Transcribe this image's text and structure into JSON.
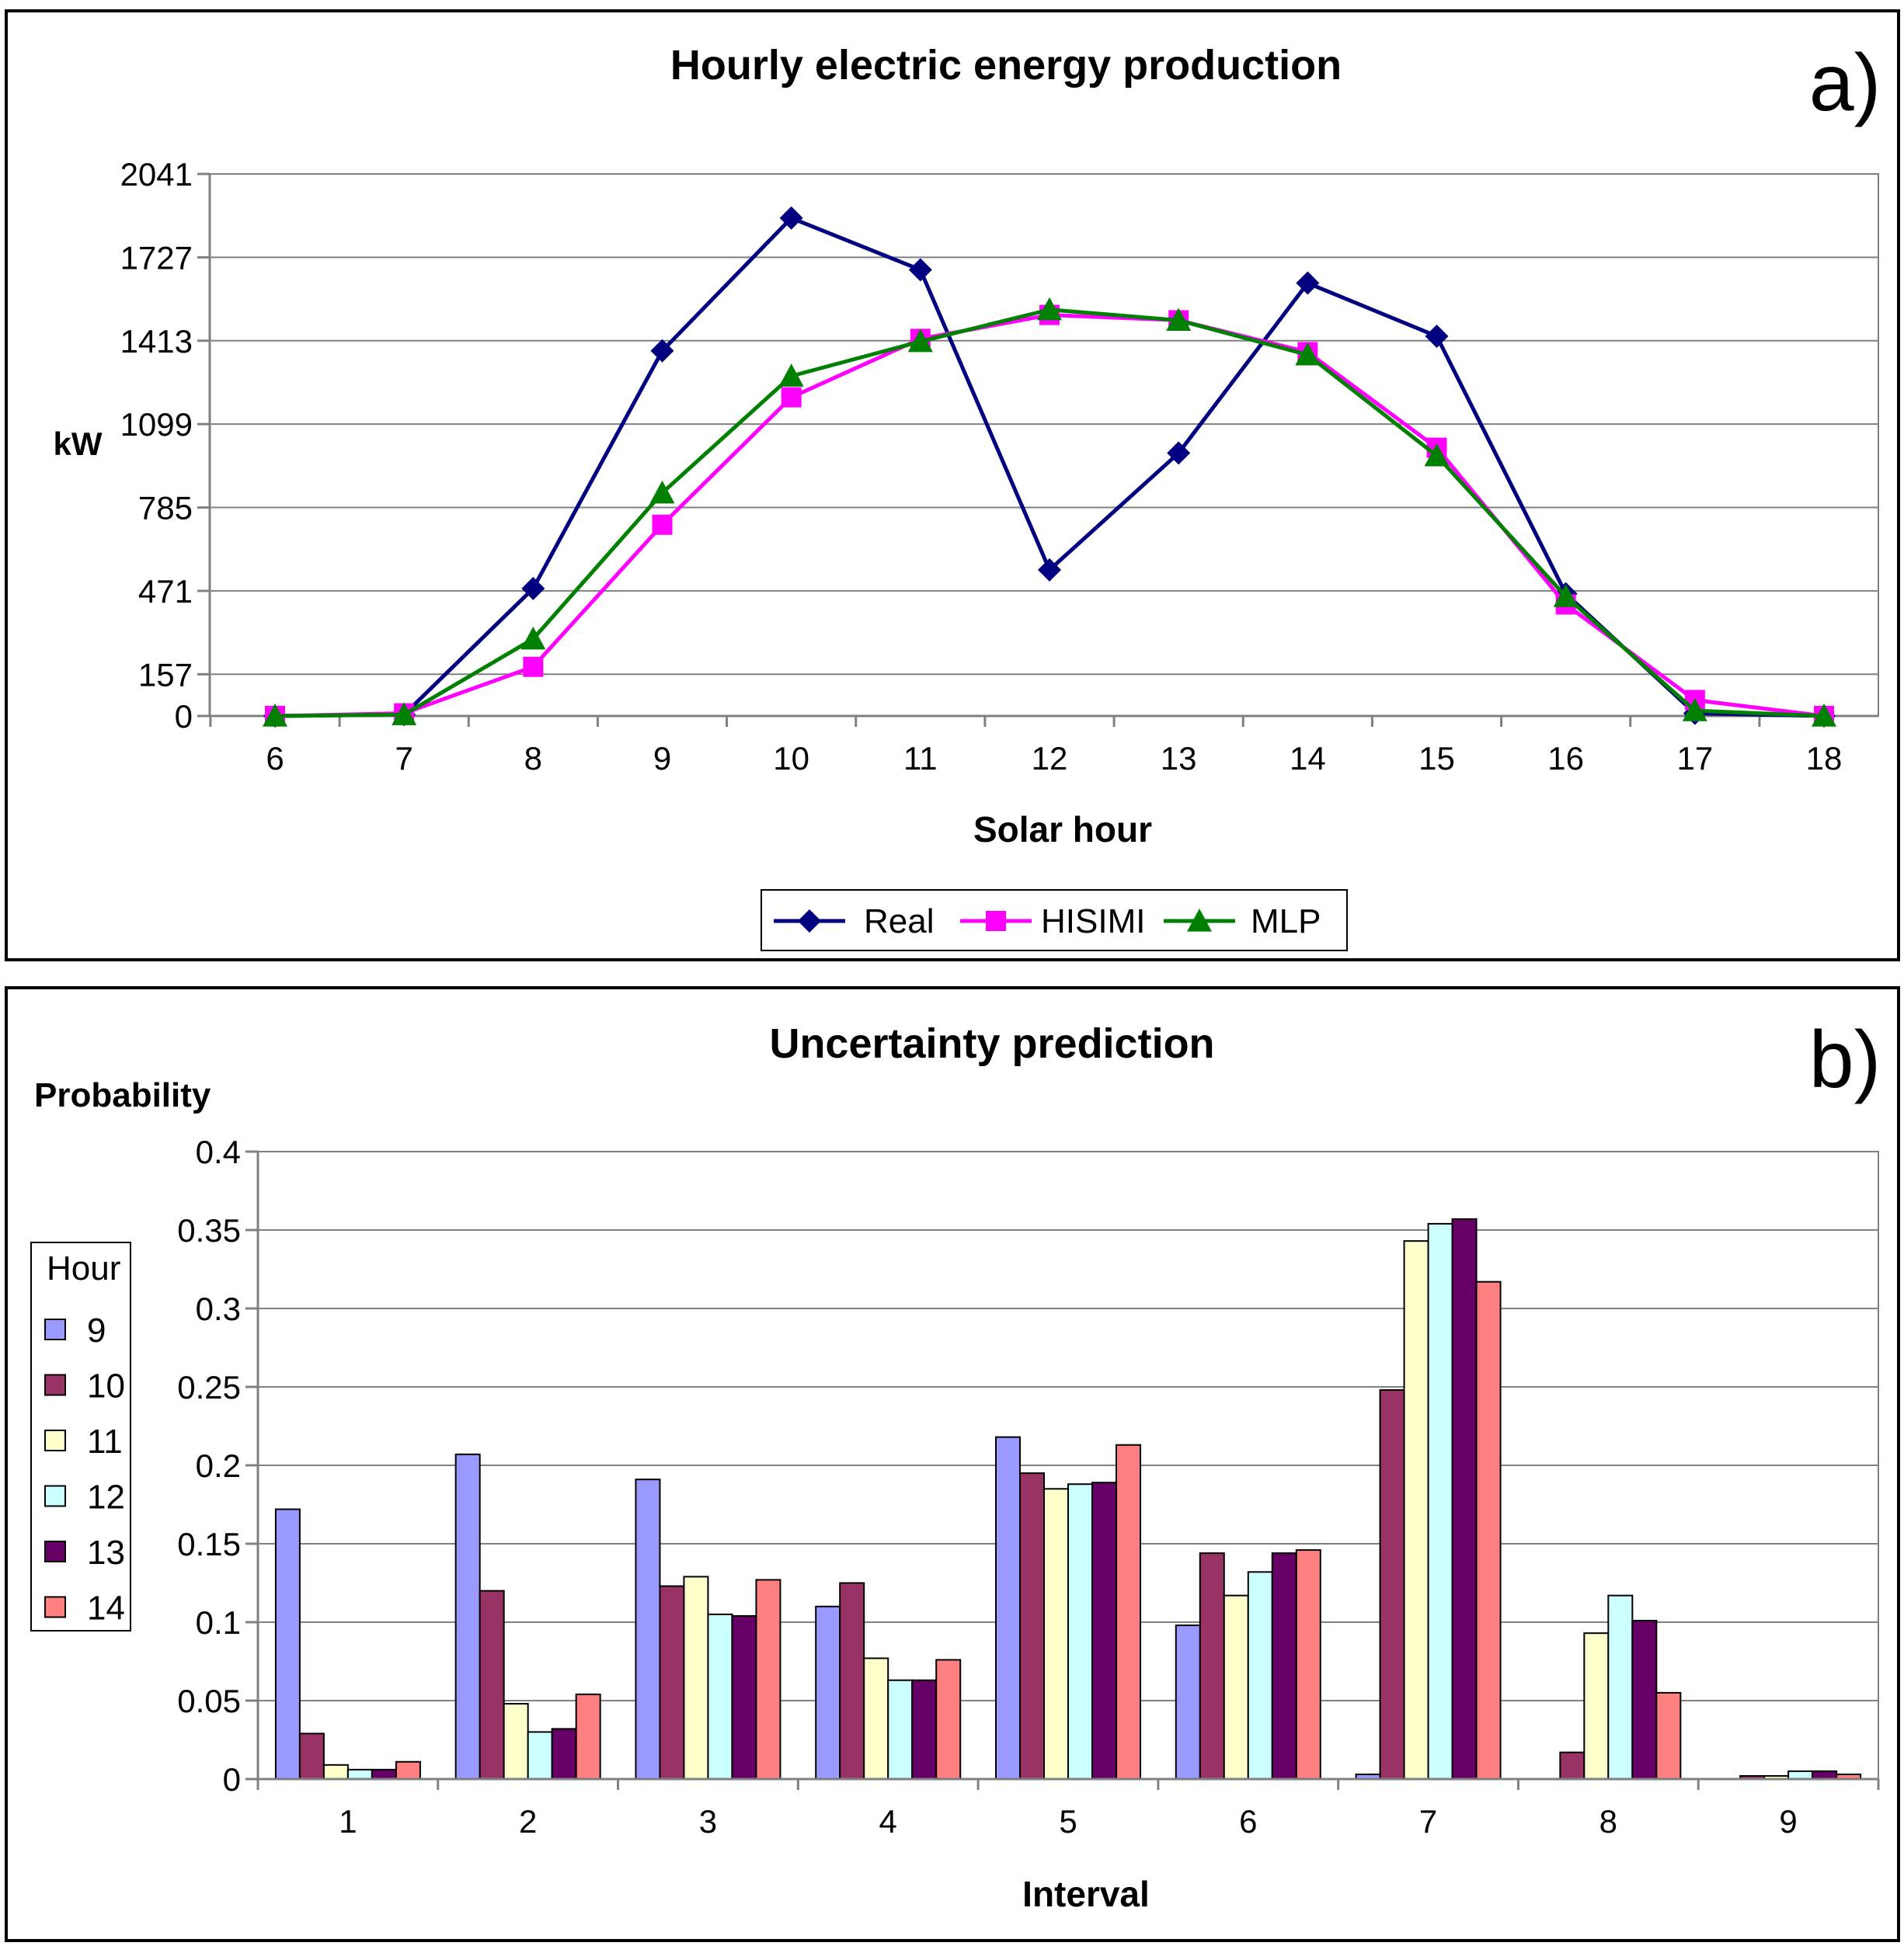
{
  "chart_data": [
    {
      "type": "line",
      "title": "Hourly electric energy production",
      "panel_label": "a)",
      "xlabel": "Solar hour",
      "ylabel": "kW",
      "x": [
        6,
        7,
        8,
        9,
        10,
        11,
        12,
        13,
        14,
        15,
        16,
        17,
        18
      ],
      "yticks": [
        0,
        157,
        471,
        785,
        1099,
        1413,
        1727,
        2041
      ],
      "ylim": [
        0,
        2041
      ],
      "grid": true,
      "legend_position": "bottom-center",
      "series": [
        {
          "name": "Real",
          "color": "#000080",
          "marker": "diamond",
          "values": [
            0,
            5,
            480,
            1375,
            1875,
            1680,
            550,
            990,
            1630,
            1430,
            460,
            10,
            0
          ]
        },
        {
          "name": "HISIMI",
          "color": "#ff00ff",
          "marker": "square",
          "values": [
            0,
            10,
            185,
            720,
            1200,
            1420,
            1510,
            1490,
            1370,
            1010,
            420,
            60,
            0
          ]
        },
        {
          "name": "MLP",
          "color": "#008000",
          "marker": "triangle",
          "values": [
            0,
            5,
            290,
            840,
            1280,
            1410,
            1530,
            1490,
            1360,
            980,
            450,
            20,
            0
          ]
        }
      ]
    },
    {
      "type": "bar",
      "title": "Uncertainty prediction",
      "panel_label": "b)",
      "xlabel": "Interval",
      "ylabel": "Probability",
      "categories": [
        "1",
        "2",
        "3",
        "4",
        "5",
        "6",
        "7",
        "8",
        "9"
      ],
      "yticks": [
        "0",
        "0.05",
        "0.1",
        "0.15",
        "0.2",
        "0.25",
        "0.3",
        "0.35",
        "0.4"
      ],
      "ylim": [
        0,
        0.4
      ],
      "grid": true,
      "legend_title": "Hour",
      "legend_position": "left",
      "series": [
        {
          "name": "9",
          "color": "#9999ff",
          "values": [
            0.172,
            0.207,
            0.191,
            0.11,
            0.218,
            0.098,
            0.003,
            0.0,
            0.0
          ]
        },
        {
          "name": "10",
          "color": "#993366",
          "values": [
            0.029,
            0.12,
            0.123,
            0.125,
            0.195,
            0.144,
            0.248,
            0.017,
            0.002
          ]
        },
        {
          "name": "11",
          "color": "#ffffcc",
          "values": [
            0.009,
            0.048,
            0.129,
            0.077,
            0.185,
            0.117,
            0.343,
            0.093,
            0.002
          ]
        },
        {
          "name": "12",
          "color": "#ccffff",
          "values": [
            0.006,
            0.03,
            0.105,
            0.063,
            0.188,
            0.132,
            0.354,
            0.117,
            0.005
          ]
        },
        {
          "name": "13",
          "color": "#660066",
          "values": [
            0.006,
            0.032,
            0.104,
            0.063,
            0.189,
            0.144,
            0.357,
            0.101,
            0.005
          ]
        },
        {
          "name": "14",
          "color": "#ff8080",
          "values": [
            0.011,
            0.054,
            0.127,
            0.076,
            0.213,
            0.146,
            0.317,
            0.055,
            0.003
          ]
        }
      ]
    }
  ]
}
